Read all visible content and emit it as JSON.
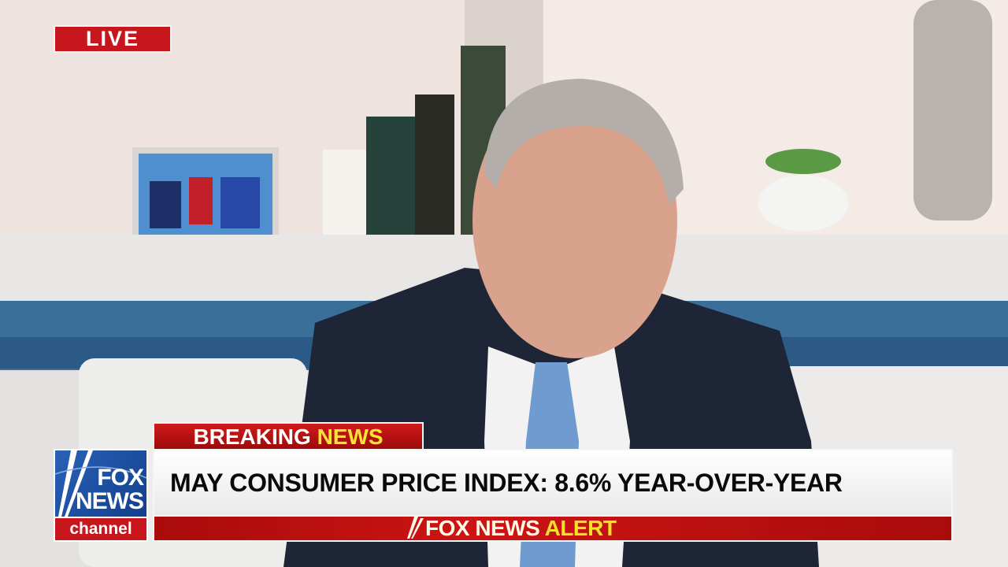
{
  "live_badge": "LIVE",
  "breaking": {
    "word1": "BREAKING",
    "word2": "NEWS"
  },
  "logo": {
    "line1": "FOX",
    "line2": "NEWS",
    "line3": "channel"
  },
  "headline": "MAY CONSUMER PRICE INDEX: 8.6% YEAR-OVER-YEAR",
  "alert": {
    "part1": "FOX NEWS",
    "part2": "ALERT"
  },
  "colors": {
    "red": "#c8161d",
    "yellow": "#f5e128",
    "blue": "#1b4a9b"
  }
}
